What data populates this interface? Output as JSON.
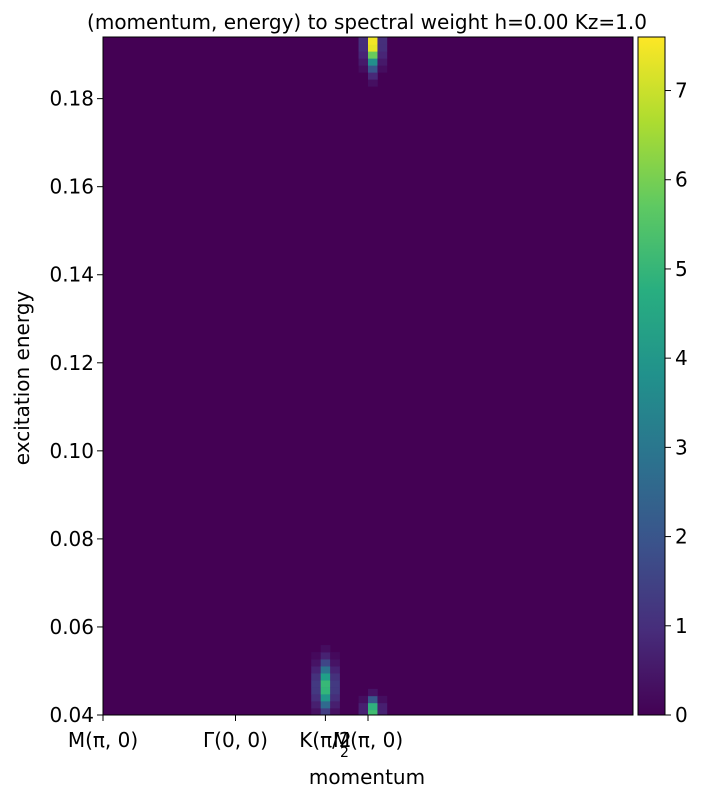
{
  "chart_data": {
    "type": "heatmap",
    "title": "(momentum, energy) to spectral weight h=0.00 Kz=1.0",
    "xlabel": "momentum",
    "ylabel": "excitation energy",
    "x_ticks": [
      {
        "label": "M(π, 0)",
        "index": 0
      },
      {
        "label": "Γ(0, 0)",
        "index": 14
      },
      {
        "label": "K(π/2",
        "index": 23.5
      },
      {
        "label": "M(π, 0)",
        "index": 28
      }
    ],
    "x_tick_overlap_text": "2",
    "ylim": [
      0.04,
      0.194
    ],
    "y_ticks": [
      "0.04",
      "0.06",
      "0.08",
      "0.10",
      "0.12",
      "0.14",
      "0.16",
      "0.18"
    ],
    "y_tick_values": [
      0.04,
      0.06,
      0.08,
      0.1,
      0.12,
      0.14,
      0.16,
      0.18
    ],
    "grid": false,
    "colormap": "viridis",
    "colorbar": {
      "min": 0,
      "max": 7.6,
      "ticks": [
        "0",
        "1",
        "2",
        "3",
        "4",
        "5",
        "6",
        "7"
      ],
      "tick_values": [
        0,
        1,
        2,
        3,
        4,
        5,
        6,
        7
      ]
    },
    "x_columns": 56,
    "background_value": 0,
    "peaks": [
      {
        "column": 23.5,
        "energy": 0.0465,
        "weight": 5.2,
        "energy_width": 0.0035,
        "column_width": 0.6
      },
      {
        "column": 28.5,
        "energy": 0.041,
        "weight": 5.6,
        "energy_width": 0.0018,
        "column_width": 0.5
      },
      {
        "column": 28.5,
        "energy": 0.1925,
        "weight": 7.6,
        "energy_width": 0.0035,
        "column_width": 0.5
      }
    ]
  }
}
